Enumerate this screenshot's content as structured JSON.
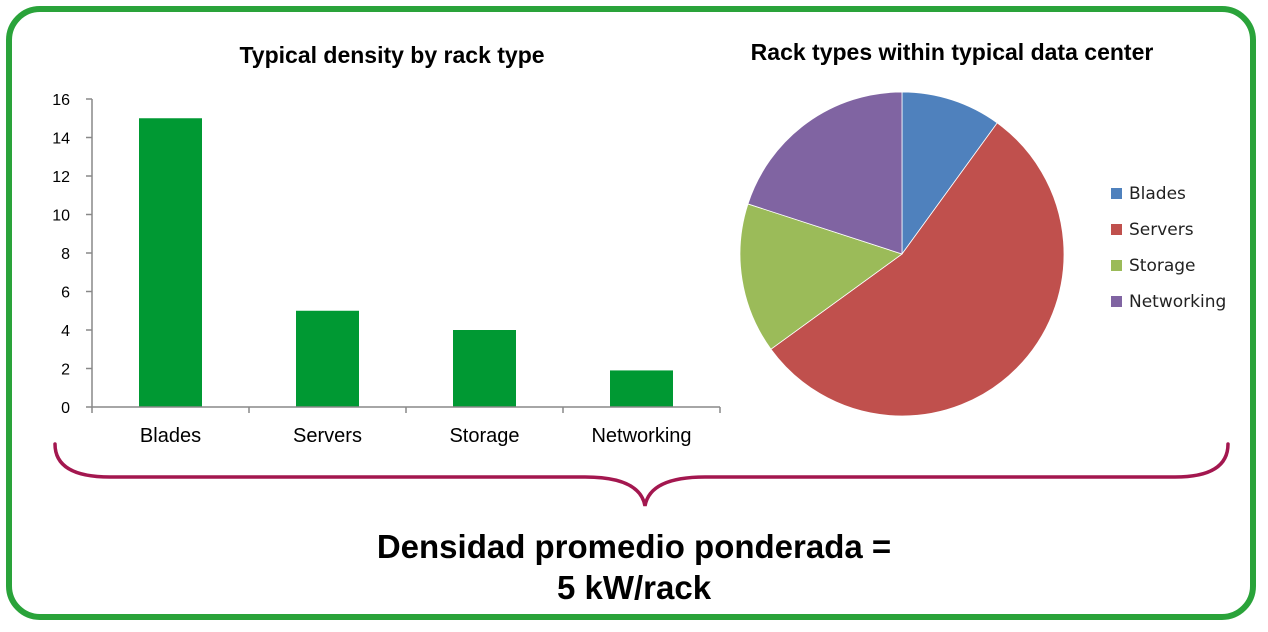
{
  "chart_data": [
    {
      "type": "bar",
      "title": "Typical density by rack type",
      "categories": [
        "Blades",
        "Servers",
        "Storage",
        "Networking"
      ],
      "values": [
        15,
        5,
        4,
        1.9
      ],
      "ylim": [
        0,
        16
      ],
      "yticks": [
        0,
        2,
        4,
        6,
        8,
        10,
        12,
        14,
        16
      ],
      "xlabel": "",
      "ylabel": "",
      "grid": false,
      "color": "#009933"
    },
    {
      "type": "pie",
      "title": "Rack types within typical data center",
      "labels": [
        "Blades",
        "Servers",
        "Storage",
        "Networking"
      ],
      "values": [
        10,
        55,
        15,
        20
      ],
      "colors": [
        "#4f81bd",
        "#c0504d",
        "#9bbb59",
        "#8064a2"
      ],
      "legend": "right"
    }
  ],
  "summary": {
    "line1": "Densidad promedio ponderada =",
    "line2": "5 kW/rack"
  },
  "colors": {
    "frame": "#2aa33a",
    "brace": "#a3174f"
  }
}
